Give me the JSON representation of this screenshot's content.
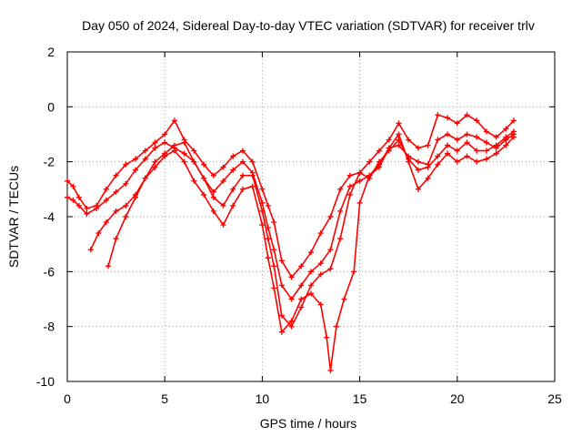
{
  "chart_data": {
    "type": "scatter",
    "title": "Day 050 of 2024, Sidereal Day-to-day VTEC variation (SDTVAR) for receiver trlv",
    "xlabel": "GPS time / hours",
    "ylabel": "SDTVAR / TECUs",
    "xlim": [
      0,
      25
    ],
    "ylim": [
      -10,
      2
    ],
    "xticks": [
      "0",
      "5",
      "10",
      "15",
      "20",
      "25"
    ],
    "yticks": [
      "-10",
      "-8",
      "-6",
      "-4",
      "-2",
      "0",
      "2"
    ],
    "xtick_values": [
      0,
      5,
      10,
      15,
      20,
      25
    ],
    "ytick_values": [
      -10,
      -8,
      -6,
      -4,
      -2,
      0,
      2
    ],
    "grid": true,
    "marker": "plus",
    "color": "#ff0000",
    "series": [
      {
        "x": [
          0.0,
          0.3,
          0.6,
          1.0,
          1.5,
          2.0,
          2.5,
          3.0,
          3.5,
          4.0,
          4.5,
          5.0,
          5.5,
          6.0,
          6.5,
          7.0,
          7.5,
          8.0,
          8.5,
          9.0,
          9.5,
          10.0,
          10.3,
          10.6,
          11.0,
          11.5,
          12.0,
          12.5,
          13.0,
          13.5,
          14.0,
          14.5,
          15.0,
          15.5,
          16.0,
          16.5,
          17.0,
          17.5,
          18.0,
          18.5,
          19.0,
          19.5,
          20.0,
          20.5,
          21.0,
          21.5,
          22.0,
          22.5,
          22.9
        ],
        "y": [
          -2.7,
          -2.9,
          -3.3,
          -3.7,
          -3.6,
          -3.0,
          -2.5,
          -2.1,
          -1.9,
          -1.6,
          -1.3,
          -1.0,
          -0.5,
          -1.2,
          -1.6,
          -2.1,
          -2.5,
          -2.2,
          -1.8,
          -1.6,
          -2.0,
          -3.0,
          -3.6,
          -4.2,
          -5.6,
          -6.2,
          -5.8,
          -5.3,
          -4.6,
          -4.0,
          -3.0,
          -2.5,
          -2.4,
          -2.0,
          -1.6,
          -1.2,
          -0.6,
          -1.2,
          -1.5,
          -1.4,
          -0.3,
          -0.4,
          -0.6,
          -0.3,
          -0.5,
          -0.9,
          -1.1,
          -0.8,
          -0.5
        ]
      },
      {
        "x": [
          0.0,
          0.3,
          0.6,
          1.0,
          1.5,
          2.0,
          2.5,
          3.0,
          3.5,
          4.0,
          4.5,
          5.0,
          5.5,
          6.0,
          6.5,
          7.0,
          7.5,
          8.0,
          8.5,
          9.0,
          9.5,
          10.0,
          10.3,
          10.6,
          11.0,
          11.5,
          12.0,
          12.5,
          13.0,
          13.5,
          14.0,
          14.5,
          15.0,
          15.5,
          16.0,
          16.5,
          17.0,
          17.5,
          18.0,
          18.5,
          19.0,
          19.5,
          20.0,
          20.5,
          21.0,
          21.5,
          22.0,
          22.5,
          22.9
        ],
        "y": [
          -3.3,
          -3.4,
          -3.6,
          -3.9,
          -3.7,
          -3.4,
          -3.1,
          -2.8,
          -2.3,
          -1.9,
          -1.5,
          -1.3,
          -1.5,
          -1.7,
          -2.0,
          -2.6,
          -3.1,
          -2.7,
          -2.3,
          -2.0,
          -2.4,
          -3.5,
          -4.4,
          -5.2,
          -6.5,
          -7.0,
          -6.5,
          -6.0,
          -5.7,
          -5.2,
          -3.8,
          -2.9,
          -2.7,
          -2.5,
          -2.2,
          -1.5,
          -1.4,
          -1.8,
          -2.0,
          -2.1,
          -1.2,
          -1.0,
          -1.2,
          -1.0,
          -1.1,
          -1.3,
          -1.5,
          -1.2,
          -1.0
        ]
      },
      {
        "x": [
          1.2,
          1.6,
          2.0,
          2.5,
          3.0,
          3.5,
          4.0,
          4.5,
          5.0,
          5.5,
          6.0,
          6.5,
          7.0,
          7.5,
          8.0,
          8.5,
          9.0,
          9.5,
          10.0,
          10.3,
          10.6,
          11.0,
          11.5,
          12.0,
          12.5,
          13.0,
          13.5,
          14.0,
          14.5,
          15.0,
          15.5,
          16.0,
          16.5,
          17.0,
          17.5,
          18.0,
          18.5,
          19.0,
          19.5,
          20.0,
          20.5,
          21.0,
          21.5,
          22.0,
          22.5,
          22.9
        ],
        "y": [
          -5.2,
          -4.6,
          -4.2,
          -3.8,
          -3.6,
          -3.2,
          -2.6,
          -2.0,
          -1.7,
          -1.4,
          -1.3,
          -2.0,
          -2.6,
          -3.3,
          -3.6,
          -3.0,
          -2.5,
          -2.5,
          -3.8,
          -4.8,
          -5.8,
          -7.6,
          -8.0,
          -7.3,
          -6.5,
          -6.1,
          -5.9,
          -4.8,
          -3.2,
          -2.4,
          -2.6,
          -2.0,
          -1.6,
          -1.2,
          -1.9,
          -2.3,
          -2.2,
          -1.8,
          -1.4,
          -1.6,
          -1.3,
          -1.6,
          -1.6,
          -1.4,
          -1.1,
          -0.9
        ]
      },
      {
        "x": [
          2.1,
          2.5,
          3.0,
          3.5,
          4.0,
          4.5,
          5.0,
          5.5,
          6.0,
          6.5,
          7.0,
          7.5,
          8.0,
          8.5,
          9.0,
          9.5,
          10.0,
          10.3,
          10.6,
          11.0,
          11.5,
          12.0,
          12.5,
          13.0,
          13.3,
          13.5,
          13.8,
          14.2,
          14.7,
          15.0,
          15.5,
          16.0,
          16.5,
          17.0,
          17.5,
          18.0,
          18.5,
          19.0,
          19.5,
          20.0,
          20.5,
          21.0,
          21.5,
          22.0,
          22.5,
          22.9
        ],
        "y": [
          -5.8,
          -4.8,
          -4.0,
          -3.3,
          -2.6,
          -2.2,
          -1.8,
          -1.6,
          -2.0,
          -2.7,
          -3.2,
          -3.8,
          -4.3,
          -3.6,
          -3.0,
          -2.9,
          -4.3,
          -5.5,
          -6.6,
          -8.2,
          -7.8,
          -7.0,
          -6.8,
          -7.2,
          -8.4,
          -9.6,
          -8.0,
          -7.0,
          -6.0,
          -3.5,
          -2.5,
          -2.1,
          -1.5,
          -1.0,
          -2.0,
          -3.0,
          -2.6,
          -2.1,
          -1.7,
          -2.0,
          -1.8,
          -2.0,
          -1.9,
          -1.7,
          -1.4,
          -1.1
        ]
      }
    ]
  }
}
